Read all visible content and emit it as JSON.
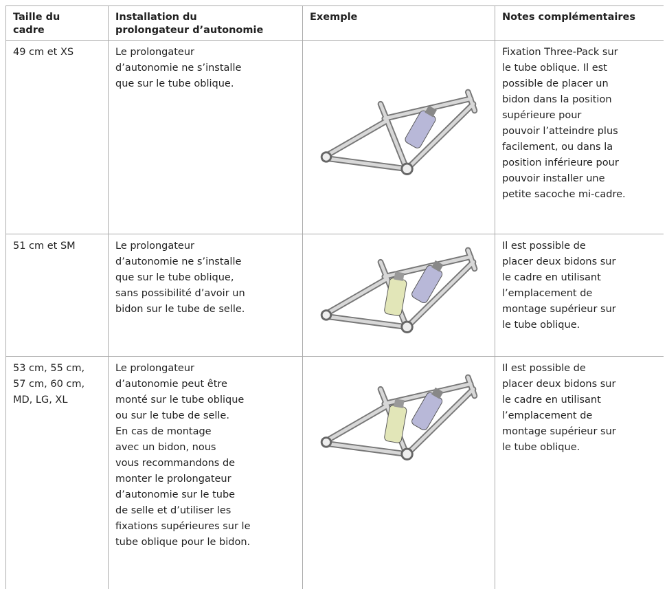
{
  "header": [
    [
      "Taille du",
      "cadre"
    ],
    [
      "Installation du",
      "prolongateur d’autonomie"
    ],
    [
      "Exemple"
    ],
    [
      "Notes complémentaires"
    ]
  ],
  "rows": [
    {
      "size": [
        "49 cm et XS"
      ],
      "installation": [
        "Le prolongateur",
        "d’autonomie ne s’installe",
        "que sur le tube oblique."
      ],
      "notes": [
        "Fixation Three-Pack sur",
        "le tube oblique. Il est",
        "possible de placer un",
        "bidon dans la position",
        "supérieure pour",
        "pouvoir l’atteindre plus",
        "facilement, ou dans la",
        "position inférieure pour",
        "pouvoir installer une",
        "petite sacoche mi-cadre."
      ]
    },
    {
      "size": [
        "51 cm et SM"
      ],
      "installation": [
        "Le prolongateur",
        "d’autonomie ne s’installe",
        "que sur le tube oblique,",
        "sans possibilité d’avoir un",
        "bidon sur le tube de selle."
      ],
      "notes": [
        "Il est possible de",
        "placer deux bidons sur",
        "le cadre en utilisant",
        "l’emplacement de",
        "montage supérieur sur",
        "le tube oblique."
      ]
    },
    {
      "size": [
        "53 cm, 55 cm,",
        "57 cm, 60 cm,",
        "MD, LG, XL"
      ],
      "installation": [
        "Le prolongateur",
        "d’autonomie peut être",
        "monté sur le tube oblique",
        "ou sur le tube de selle.",
        "En cas de montage",
        "avec un bidon, nous",
        "vous recommandons de",
        "monter le prolongateur",
        "d’autonomie sur le tube",
        "de selle et d’utiliser les",
        "fixations supérieures sur le",
        "tube oblique pour le bidon."
      ],
      "notes": [
        "Il est possible de",
        "placer deux bidons sur",
        "le cadre en utilisant",
        "l’emplacement de",
        "montage supérieur sur",
        "le tube oblique."
      ]
    }
  ]
}
